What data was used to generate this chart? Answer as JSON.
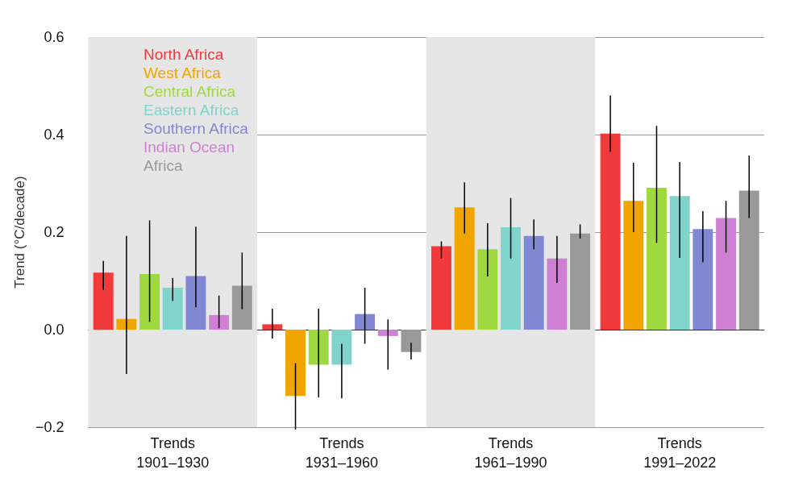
{
  "chart_data": {
    "type": "bar",
    "ylabel": "Trend (°C/decade)",
    "categories": [
      "Trends\n1901–1930",
      "Trends\n1931–1960",
      "Trends\n1961–1990",
      "Trends\n1991–2022"
    ],
    "series": [
      {
        "name": "North Africa",
        "color": "#f03a3c",
        "values": [
          0.117,
          0.011,
          0.171,
          0.402
        ],
        "errors": [
          [
            0.082,
            0.141
          ],
          [
            -0.018,
            0.043
          ],
          [
            0.146,
            0.181
          ],
          [
            0.365,
            0.48
          ]
        ]
      },
      {
        "name": "West Africa",
        "color": "#f0a500",
        "values": [
          0.022,
          -0.136,
          0.251,
          0.264
        ],
        "errors": [
          [
            -0.091,
            0.192
          ],
          [
            -0.205,
            -0.069
          ],
          [
            0.197,
            0.302
          ],
          [
            0.2,
            0.342
          ]
        ]
      },
      {
        "name": "Central Africa",
        "color": "#a0d840",
        "values": [
          0.114,
          -0.072,
          0.165,
          0.291
        ],
        "errors": [
          [
            0.016,
            0.224
          ],
          [
            -0.139,
            0.043
          ],
          [
            0.109,
            0.218
          ],
          [
            0.178,
            0.418
          ]
        ]
      },
      {
        "name": "Eastern Africa",
        "color": "#80d4cc",
        "values": [
          0.086,
          -0.072,
          0.21,
          0.274
        ],
        "errors": [
          [
            0.059,
            0.106
          ],
          [
            -0.141,
            -0.029
          ],
          [
            0.146,
            0.27
          ],
          [
            0.147,
            0.344
          ]
        ]
      },
      {
        "name": "Southern Africa",
        "color": "#8088d4",
        "values": [
          0.11,
          0.032,
          0.192,
          0.206
        ],
        "errors": [
          [
            0.046,
            0.211
          ],
          [
            -0.029,
            0.086
          ],
          [
            0.165,
            0.226
          ],
          [
            0.138,
            0.243
          ]
        ]
      },
      {
        "name": "Indian Ocean",
        "color": "#d080d4",
        "values": [
          0.03,
          -0.013,
          0.146,
          0.229
        ],
        "errors": [
          [
            0.003,
            0.07
          ],
          [
            -0.082,
            0.021
          ],
          [
            0.096,
            0.192
          ],
          [
            0.158,
            0.264
          ]
        ]
      },
      {
        "name": "Africa",
        "color": "#999999",
        "values": [
          0.09,
          -0.046,
          0.197,
          0.285
        ],
        "errors": [
          [
            0.042,
            0.158
          ],
          [
            -0.061,
            -0.027
          ],
          [
            0.187,
            0.216
          ],
          [
            0.229,
            0.357
          ]
        ]
      }
    ],
    "ylim": [
      -0.2,
      0.6
    ],
    "yticks": [
      {
        "value": -0.2,
        "label": "−0.2"
      },
      {
        "value": 0,
        "label": "0.0"
      },
      0.2,
      0.4,
      0.6
    ],
    "bands": [
      {
        "axis": "x",
        "from": "Trends\n1901–1930",
        "to": "Trends\n1901–1930",
        "color": "#e6e6e6"
      },
      {
        "axis": "x",
        "from": "Trends\n1961–1990",
        "to": "Trends\n1961–1990",
        "color": "#e6e6e6"
      }
    ],
    "grid": "y",
    "legend": "top left"
  }
}
